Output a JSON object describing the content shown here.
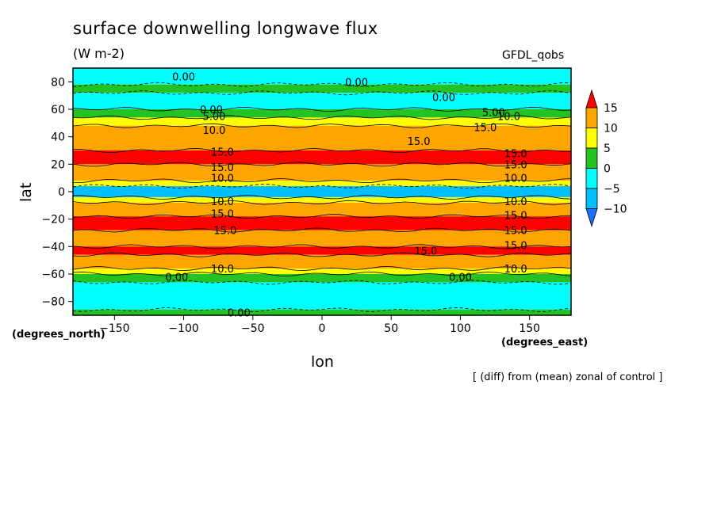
{
  "chart_data": {
    "type": "heatmap",
    "title": "surface downwelling longwave flux",
    "units": "(W m-2)",
    "model_label": "GFDL_qobs",
    "xlabel": "lon",
    "ylabel": "lat",
    "x_units_label": "(degrees_east)",
    "y_units_label": "(degrees_north)",
    "footnote": "[ (diff) from (mean) zonal of control ]",
    "xlim": [
      -180,
      180
    ],
    "ylim": [
      -90,
      90
    ],
    "x_ticks": [
      -150,
      -100,
      -50,
      0,
      50,
      100,
      150
    ],
    "y_ticks": [
      -80,
      -60,
      -40,
      -20,
      0,
      20,
      40,
      60,
      80
    ],
    "colorbar": {
      "levels": [
        -10,
        -5,
        0,
        5,
        10,
        15
      ],
      "colors": [
        "#1e6fff",
        "#00bfff",
        "#00ffff",
        "#22c322",
        "#ffff00",
        "#ffa500",
        "#ff0000"
      ]
    },
    "zonal_bands": [
      {
        "lat_min": 78,
        "lat_max": 90,
        "value": -2
      },
      {
        "lat_min": 72,
        "lat_max": 78,
        "value": 2
      },
      {
        "lat_min": 60,
        "lat_max": 72,
        "value": -2
      },
      {
        "lat_min": 54,
        "lat_max": 60,
        "value": 2
      },
      {
        "lat_min": 48,
        "lat_max": 54,
        "value": 7
      },
      {
        "lat_min": 30,
        "lat_max": 48,
        "value": 12
      },
      {
        "lat_min": 20,
        "lat_max": 30,
        "value": 16
      },
      {
        "lat_min": 8,
        "lat_max": 20,
        "value": 12
      },
      {
        "lat_min": 4,
        "lat_max": 8,
        "value": 7
      },
      {
        "lat_min": -4,
        "lat_max": 4,
        "value": -8
      },
      {
        "lat_min": -8,
        "lat_max": -4,
        "value": 7
      },
      {
        "lat_min": -18,
        "lat_max": -8,
        "value": 12
      },
      {
        "lat_min": -28,
        "lat_max": -18,
        "value": 16
      },
      {
        "lat_min": -40,
        "lat_max": -28,
        "value": 12
      },
      {
        "lat_min": -46,
        "lat_max": -40,
        "value": 16
      },
      {
        "lat_min": -56,
        "lat_max": -46,
        "value": 12
      },
      {
        "lat_min": -60,
        "lat_max": -56,
        "value": 7
      },
      {
        "lat_min": -66,
        "lat_max": -60,
        "value": 2
      },
      {
        "lat_min": -86,
        "lat_max": -66,
        "value": -2
      },
      {
        "lat_min": -90,
        "lat_max": -86,
        "value": 2
      }
    ],
    "contour_labels": [
      {
        "lon": -100,
        "lat": 84,
        "text": "0.00"
      },
      {
        "lon": 25,
        "lat": 80,
        "text": "0.00"
      },
      {
        "lon": 88,
        "lat": 69,
        "text": "0.00"
      },
      {
        "lon": -80,
        "lat": 60,
        "text": "0.00"
      },
      {
        "lon": -78,
        "lat": 55,
        "text": "5.00"
      },
      {
        "lon": 124,
        "lat": 58,
        "text": "5.00"
      },
      {
        "lon": 135,
        "lat": 55,
        "text": "10.0"
      },
      {
        "lon": -78,
        "lat": 45,
        "text": "10.0"
      },
      {
        "lon": 118,
        "lat": 47,
        "text": "15.0"
      },
      {
        "lon": 70,
        "lat": 37,
        "text": "15.0"
      },
      {
        "lon": -72,
        "lat": 29,
        "text": "15.0"
      },
      {
        "lon": 140,
        "lat": 28,
        "text": "15.0"
      },
      {
        "lon": -72,
        "lat": 18,
        "text": "15.0"
      },
      {
        "lon": 140,
        "lat": 20,
        "text": "15.0"
      },
      {
        "lon": -72,
        "lat": 10,
        "text": "10.0"
      },
      {
        "lon": 140,
        "lat": 10,
        "text": "10.0"
      },
      {
        "lon": -72,
        "lat": -7,
        "text": "10.0"
      },
      {
        "lon": 140,
        "lat": -7,
        "text": "10.0"
      },
      {
        "lon": -72,
        "lat": -16,
        "text": "15.0"
      },
      {
        "lon": 140,
        "lat": -17,
        "text": "15.0"
      },
      {
        "lon": -70,
        "lat": -28,
        "text": "15.0"
      },
      {
        "lon": 140,
        "lat": -28,
        "text": "15.0"
      },
      {
        "lon": 75,
        "lat": -43,
        "text": "15.0"
      },
      {
        "lon": 140,
        "lat": -39,
        "text": "15.0"
      },
      {
        "lon": -72,
        "lat": -56,
        "text": "10.0"
      },
      {
        "lon": 140,
        "lat": -56,
        "text": "10.0"
      },
      {
        "lon": -105,
        "lat": -62,
        "text": "0.00"
      },
      {
        "lon": 100,
        "lat": -62,
        "text": "0.00"
      },
      {
        "lon": -60,
        "lat": -88,
        "text": "0.00"
      }
    ]
  }
}
